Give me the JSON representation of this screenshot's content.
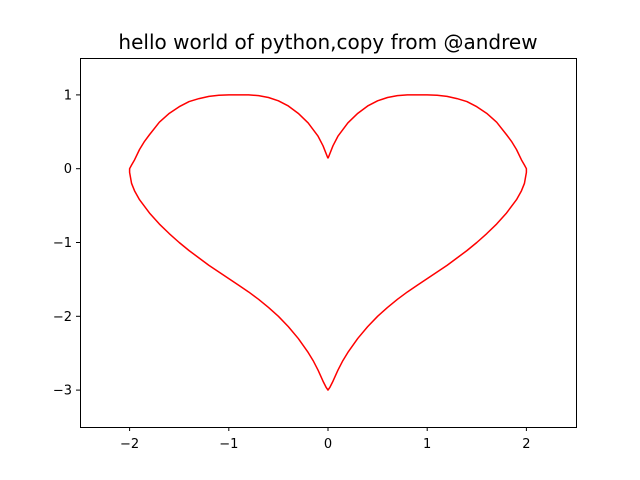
{
  "chart_data": {
    "type": "line",
    "title": "hello world of python,copy from @andrew",
    "xlabel": "",
    "ylabel": "",
    "xlim": [
      -2.5,
      2.5
    ],
    "ylim": [
      -3.5,
      1.5
    ],
    "grid": false,
    "xticks": [
      -2,
      -1,
      0,
      1,
      2
    ],
    "yticks": [
      -3,
      -2,
      -1,
      0,
      1
    ],
    "xtick_labels": [
      "−2",
      "−1",
      "0",
      "1",
      "2"
    ],
    "ytick_labels": [
      "−3",
      "−2",
      "−1",
      "0",
      "1"
    ],
    "colors": {
      "line": "#ff0000"
    },
    "series": [
      {
        "x": [
          0.0,
          0.05,
          0.1,
          0.2,
          0.3,
          0.4,
          0.5,
          0.6,
          0.7,
          0.8,
          0.9,
          1.0,
          1.1,
          1.2,
          1.3,
          1.4,
          1.5,
          1.6,
          1.7,
          1.8,
          1.85,
          1.9,
          1.95,
          1.98,
          2.0,
          2.0,
          1.98,
          1.95,
          1.9,
          1.8,
          1.7,
          1.6,
          1.5,
          1.4,
          1.3,
          1.2,
          1.1,
          1.0,
          0.9,
          0.8,
          0.7,
          0.6,
          0.5,
          0.4,
          0.3,
          0.2,
          0.15,
          0.1,
          0.05,
          0.02,
          0.0,
          -0.02,
          -0.05,
          -0.1,
          -0.15,
          -0.2,
          -0.3,
          -0.4,
          -0.5,
          -0.6,
          -0.7,
          -0.8,
          -0.9,
          -1.0,
          -1.1,
          -1.2,
          -1.3,
          -1.4,
          -1.5,
          -1.6,
          -1.7,
          -1.8,
          -1.9,
          -1.95,
          -1.98,
          -2.0,
          -2.0,
          -1.98,
          -1.95,
          -1.9,
          -1.85,
          -1.8,
          -1.7,
          -1.6,
          -1.5,
          -1.4,
          -1.3,
          -1.2,
          -1.1,
          -1.0,
          -0.9,
          -0.8,
          -0.7,
          -0.6,
          -0.5,
          -0.4,
          -0.3,
          -0.2,
          -0.1,
          -0.05,
          0.0
        ],
        "y": [
          0.14,
          0.31,
          0.44,
          0.62,
          0.75,
          0.85,
          0.92,
          0.965,
          0.99,
          1.0,
          1.0,
          1.0,
          0.995,
          0.98,
          0.95,
          0.91,
          0.84,
          0.75,
          0.63,
          0.46,
          0.37,
          0.26,
          0.12,
          0.05,
          0.0,
          -0.05,
          -0.2,
          -0.3,
          -0.42,
          -0.6,
          -0.75,
          -0.88,
          -1.0,
          -1.11,
          -1.21,
          -1.31,
          -1.4,
          -1.49,
          -1.58,
          -1.67,
          -1.77,
          -1.88,
          -2.0,
          -2.14,
          -2.3,
          -2.49,
          -2.6,
          -2.73,
          -2.88,
          -2.96,
          -3.0,
          -2.96,
          -2.88,
          -2.73,
          -2.6,
          -2.49,
          -2.3,
          -2.14,
          -2.0,
          -1.88,
          -1.77,
          -1.67,
          -1.58,
          -1.49,
          -1.4,
          -1.31,
          -1.21,
          -1.11,
          -1.0,
          -0.88,
          -0.75,
          -0.6,
          -0.42,
          -0.3,
          -0.2,
          -0.05,
          0.0,
          0.05,
          0.12,
          0.26,
          0.37,
          0.46,
          0.63,
          0.75,
          0.84,
          0.91,
          0.95,
          0.98,
          0.995,
          1.0,
          1.0,
          1.0,
          0.99,
          0.965,
          0.92,
          0.85,
          0.75,
          0.62,
          0.44,
          0.31,
          0.14
        ]
      }
    ]
  }
}
